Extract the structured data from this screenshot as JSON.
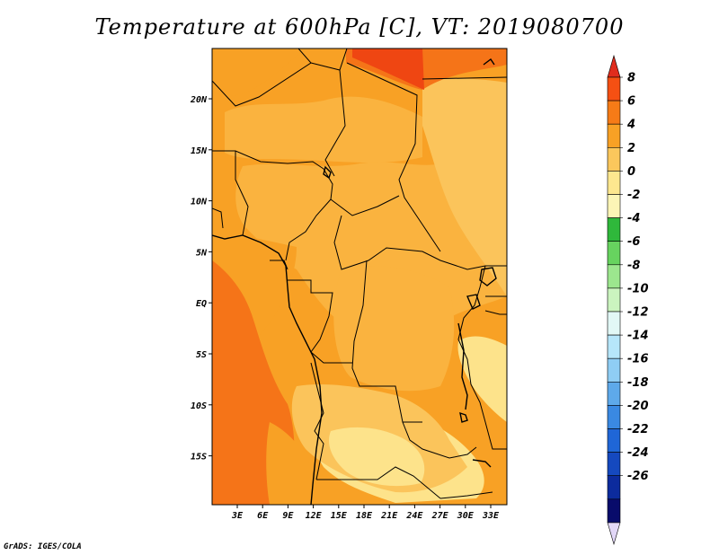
{
  "title": "Temperature at 600hPa [C], VT: 2019080700",
  "credit": "GrADS: IGES/COLA",
  "map": {
    "lon_ticks": [
      "3E",
      "6E",
      "9E",
      "12E",
      "15E",
      "18E",
      "21E",
      "24E",
      "27E",
      "30E",
      "33E"
    ],
    "lat_ticks": [
      "20N",
      "15N",
      "10N",
      "5N",
      "EQ",
      "5S",
      "10S",
      "15S"
    ],
    "colors": {
      "warm_orange": "#f8a125",
      "mid_orange": "#fab33f",
      "light_orange": "#fbc45b",
      "pale_yellow": "#fde38b",
      "dark_orange": "#f57418",
      "red_orange": "#ef4612",
      "border": "#000000"
    }
  },
  "colorbar": {
    "labels": [
      "8",
      "6",
      "4",
      "2",
      "0",
      "-2",
      "-4",
      "-6",
      "-8",
      "-10",
      "-12",
      "-14",
      "-16",
      "-18",
      "-20",
      "-22",
      "-24",
      "-26"
    ],
    "colors": [
      "#e02c1d",
      "#f55013",
      "#f67b17",
      "#f8a125",
      "#fbc75c",
      "#fde78f",
      "#fcf5b6",
      "#2fb83b",
      "#67d35f",
      "#9ce68e",
      "#cbf4bf",
      "#e2f8f6",
      "#b6e6fa",
      "#8fcdf4",
      "#5ea9ea",
      "#3a89e2",
      "#1f66d7",
      "#1549bf",
      "#0c2b9d",
      "#080b6b",
      "#e2d7f7"
    ]
  }
}
